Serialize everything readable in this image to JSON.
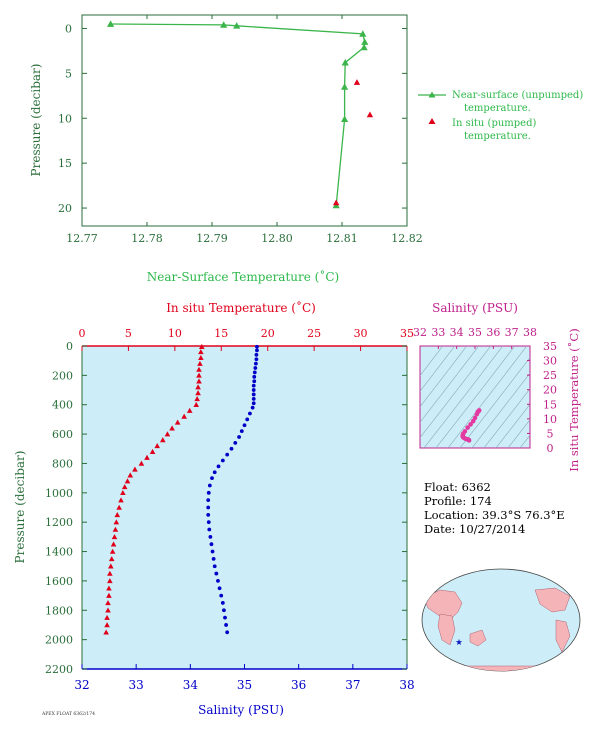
{
  "footer_text": "APEX FLOAT 6362/174",
  "metadata": {
    "float": "Float:  6362",
    "profile": "Profile:  174",
    "location": "Location:  39.3°S  76.3°E",
    "date": "Date:  10/27/2014"
  },
  "colors": {
    "near_surface": "#3bb54a",
    "in_situ": "#e0001b",
    "salinity": "#0000c8",
    "panel_bg": "#cdeef8",
    "ts_color": "#e23aa0",
    "axis_dark_green": "#2a6e3a"
  },
  "chart_data": [
    {
      "id": "near-surface-temperature",
      "type": "scatter",
      "xlabel": "Near-Surface Temperature (˚C)",
      "ylabel": "Pressure (decibar)",
      "xlim": [
        12.77,
        12.82
      ],
      "ylim": [
        22,
        -1.5
      ],
      "x_ticks": [
        "12.77",
        "12.78",
        "12.79",
        "12.80",
        "12.81",
        "12.82"
      ],
      "y_ticks": [
        "0",
        "5",
        "10",
        "15",
        "20"
      ],
      "legend": {
        "position": "right",
        "entries": [
          "Near-surface (unpumped)",
          "temperature.",
          "In situ (pumped)",
          "temperature."
        ]
      },
      "series": [
        {
          "name": "Near-surface (unpumped) temperature.",
          "x": [
            12.7744,
            12.7918,
            12.7938,
            12.8132,
            12.8135,
            12.8134,
            12.8105,
            12.8104,
            12.8104,
            12.8091
          ],
          "y": [
            -0.5,
            -0.4,
            -0.3,
            0.6,
            1.5,
            2.1,
            3.8,
            6.5,
            10.1,
            19.7
          ]
        },
        {
          "name": "In situ (pumped) temperature.",
          "x": [
            12.8123,
            12.8143,
            12.8091
          ],
          "y": [
            6.0,
            9.6,
            19.4
          ]
        }
      ]
    },
    {
      "id": "profile",
      "type": "scatter",
      "top_xlabel": "In situ Temperature (˚C)",
      "bottom_xlabel": "Salinity (PSU)",
      "ylabel": "Pressure (decibar)",
      "temp_lim": [
        0,
        35
      ],
      "sal_lim": [
        32,
        38
      ],
      "ylim": [
        0,
        2200
      ],
      "temp_ticks": [
        "0",
        "5",
        "10",
        "15",
        "20",
        "25",
        "30",
        "35"
      ],
      "sal_ticks": [
        "32",
        "33",
        "34",
        "35",
        "36",
        "37",
        "38"
      ],
      "y_ticks": [
        "0",
        "200",
        "400",
        "600",
        "800",
        "1000",
        "1200",
        "1400",
        "1600",
        "1800",
        "2000",
        "2200"
      ],
      "temperature_profile": {
        "p": [
          5,
          40,
          80,
          120,
          160,
          200,
          240,
          280,
          320,
          360,
          400,
          440,
          480,
          520,
          560,
          600,
          640,
          680,
          720,
          760,
          800,
          840,
          880,
          920,
          960,
          1000,
          1050,
          1100,
          1150,
          1200,
          1250,
          1300,
          1350,
          1400,
          1450,
          1500,
          1550,
          1600,
          1650,
          1700,
          1750,
          1800,
          1850,
          1900,
          1950
        ],
        "t": [
          12.9,
          12.8,
          12.8,
          12.7,
          12.6,
          12.6,
          12.6,
          12.5,
          12.5,
          12.4,
          12.3,
          11.6,
          11.0,
          10.3,
          9.7,
          9.2,
          8.7,
          8.1,
          7.6,
          7.0,
          6.4,
          5.7,
          5.2,
          4.9,
          4.6,
          4.4,
          4.2,
          4.0,
          3.8,
          3.7,
          3.6,
          3.5,
          3.4,
          3.3,
          3.2,
          3.1,
          3.0,
          3.0,
          2.9,
          2.9,
          2.8,
          2.8,
          2.7,
          2.7,
          2.6
        ]
      },
      "salinity_profile": {
        "p": [
          5,
          30,
          60,
          90,
          120,
          150,
          180,
          210,
          240,
          270,
          300,
          330,
          360,
          390,
          420,
          460,
          500,
          540,
          580,
          620,
          660,
          700,
          740,
          780,
          820,
          860,
          900,
          950,
          1000,
          1050,
          1100,
          1150,
          1200,
          1250,
          1300,
          1350,
          1400,
          1450,
          1500,
          1550,
          1600,
          1650,
          1700,
          1750,
          1800,
          1850,
          1900,
          1950
        ],
        "s": [
          35.23,
          35.23,
          35.22,
          35.22,
          35.21,
          35.2,
          35.19,
          35.18,
          35.18,
          35.17,
          35.17,
          35.17,
          35.17,
          35.17,
          35.15,
          35.1,
          35.05,
          35.0,
          34.95,
          34.9,
          34.83,
          34.76,
          34.68,
          34.6,
          34.52,
          34.45,
          34.4,
          34.36,
          34.34,
          34.33,
          34.33,
          34.33,
          34.34,
          34.35,
          34.37,
          34.39,
          34.41,
          34.43,
          34.45,
          34.48,
          34.51,
          34.54,
          34.57,
          34.6,
          34.62,
          34.64,
          34.66,
          34.68
        ]
      }
    },
    {
      "id": "ts-diagram",
      "type": "scatter",
      "top_xlabel": "Salinity (PSU)",
      "right_ylabel": "In situ Temperature (˚C)",
      "sal_lim": [
        32,
        38
      ],
      "temp_lim": [
        0,
        35
      ],
      "sal_ticks": [
        "32",
        "33",
        "34",
        "35",
        "36",
        "37",
        "38"
      ],
      "temp_ticks": [
        "0",
        "5",
        "10",
        "15",
        "20",
        "25",
        "30",
        "35"
      ],
      "s": [
        35.23,
        35.2,
        35.17,
        35.15,
        35.1,
        35.0,
        34.9,
        34.76,
        34.6,
        34.45,
        34.36,
        34.33,
        34.33,
        34.35,
        34.39,
        34.45,
        34.51,
        34.57,
        34.62,
        34.66,
        34.68
      ],
      "t": [
        12.9,
        12.7,
        12.5,
        12.4,
        11.6,
        10.3,
        9.2,
        8.1,
        7.0,
        5.7,
        4.9,
        4.4,
        4.0,
        3.7,
        3.5,
        3.3,
        3.1,
        3.0,
        2.9,
        2.8,
        2.6
      ]
    },
    {
      "id": "location-map",
      "type": "scatter",
      "marker": {
        "lat": -39.3,
        "lon": 76.3
      }
    }
  ]
}
